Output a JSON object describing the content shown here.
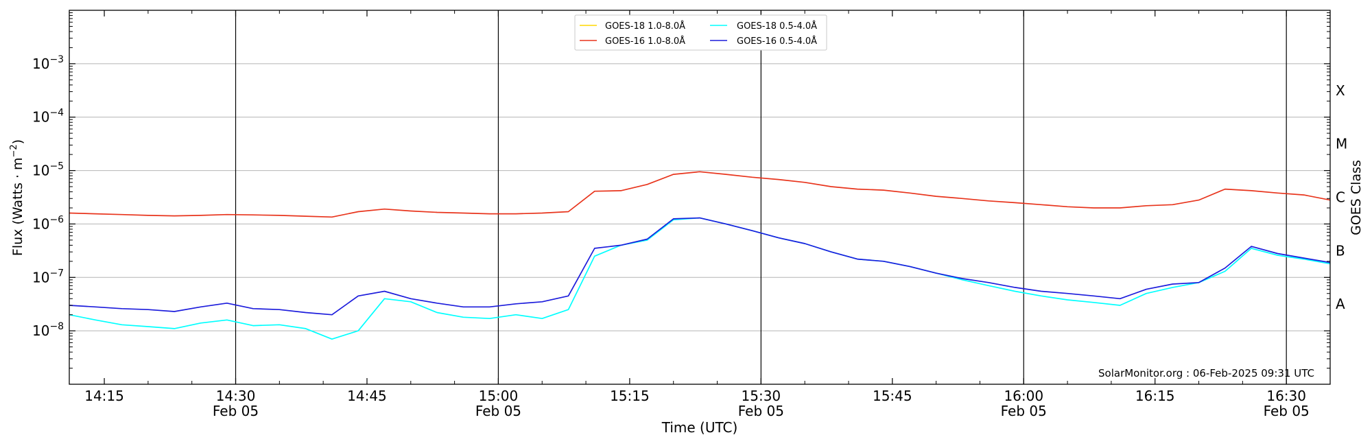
{
  "chart_data": {
    "type": "line",
    "title": "",
    "xlabel": "Time (UTC)",
    "ylabel": "Flux (Watts · m",
    "ylabel_superscript": "−2",
    "ylabel_close": ")",
    "y2label": "GOES Class",
    "yscale": "log",
    "ylim": [
      1e-09,
      0.01
    ],
    "xlim": [
      "2025-02-05 14:11",
      "2025-02-05 16:35"
    ],
    "grid": true,
    "legend_position": "top-center",
    "y_ticks": [
      {
        "base": "10",
        "exp": "−3",
        "value": 0.001
      },
      {
        "base": "10",
        "exp": "−4",
        "value": 0.0001
      },
      {
        "base": "10",
        "exp": "−5",
        "value": 1e-05
      },
      {
        "base": "10",
        "exp": "−6",
        "value": 1e-06
      },
      {
        "base": "10",
        "exp": "−7",
        "value": 1e-07
      },
      {
        "base": "10",
        "exp": "−8",
        "value": 1e-08
      }
    ],
    "x_ticks": [
      {
        "time": "14:15",
        "date": ""
      },
      {
        "time": "14:30",
        "date": "Feb 05"
      },
      {
        "time": "14:45",
        "date": ""
      },
      {
        "time": "15:00",
        "date": "Feb 05"
      },
      {
        "time": "15:15",
        "date": ""
      },
      {
        "time": "15:30",
        "date": "Feb 05"
      },
      {
        "time": "15:45",
        "date": ""
      },
      {
        "time": "16:00",
        "date": "Feb 05"
      },
      {
        "time": "16:15",
        "date": ""
      },
      {
        "time": "16:30",
        "date": "Feb 05"
      }
    ],
    "vertical_lines": [
      "14:30",
      "15:00",
      "15:30",
      "16:00",
      "16:30"
    ],
    "class_labels": [
      {
        "label": "X",
        "flux": 0.0001
      },
      {
        "label": "M",
        "flux": 1e-05
      },
      {
        "label": "C",
        "flux": 1e-06
      },
      {
        "label": "B",
        "flux": 1e-07
      },
      {
        "label": "A",
        "flux": 1e-08
      }
    ],
    "x_times": [
      "14:11",
      "14:14",
      "14:17",
      "14:20",
      "14:23",
      "14:26",
      "14:29",
      "14:32",
      "14:35",
      "14:38",
      "14:41",
      "14:44",
      "14:47",
      "14:50",
      "14:53",
      "14:56",
      "14:59",
      "15:02",
      "15:05",
      "15:08",
      "15:11",
      "15:14",
      "15:17",
      "15:20",
      "15:23",
      "15:26",
      "15:29",
      "15:32",
      "15:35",
      "15:38",
      "15:41",
      "15:44",
      "15:47",
      "15:50",
      "15:53",
      "15:56",
      "15:59",
      "16:02",
      "16:05",
      "16:08",
      "16:11",
      "16:14",
      "16:17",
      "16:20",
      "16:23",
      "16:26",
      "16:29",
      "16:32",
      "16:35"
    ],
    "series": [
      {
        "name": "GOES-18 1.0-8.0Å",
        "color": "#ffd700",
        "values": []
      },
      {
        "name": "GOES-16 1.0-8.0Å",
        "color": "#e8341c",
        "values": [
          1.6e-06,
          1.55e-06,
          1.5e-06,
          1.45e-06,
          1.42e-06,
          1.45e-06,
          1.5e-06,
          1.48e-06,
          1.45e-06,
          1.4e-06,
          1.35e-06,
          1.7e-06,
          1.9e-06,
          1.75e-06,
          1.65e-06,
          1.6e-06,
          1.55e-06,
          1.55e-06,
          1.6e-06,
          1.7e-06,
          4.1e-06,
          4.2e-06,
          5.5e-06,
          8.5e-06,
          9.5e-06,
          8.5e-06,
          7.5e-06,
          6.8e-06,
          6e-06,
          5e-06,
          4.5e-06,
          4.3e-06,
          3.8e-06,
          3.3e-06,
          3e-06,
          2.7e-06,
          2.5e-06,
          2.3e-06,
          2.1e-06,
          2e-06,
          2e-06,
          2.2e-06,
          2.3e-06,
          2.8e-06,
          4.5e-06,
          4.2e-06,
          3.8e-06,
          3.5e-06,
          2.8e-06
        ]
      },
      {
        "name": "GOES-18 0.5-4.0Å",
        "color": "#00ffff",
        "values": [
          2e-08,
          1.6e-08,
          1.3e-08,
          1.2e-08,
          1.1e-08,
          1.4e-08,
          1.6e-08,
          1.25e-08,
          1.3e-08,
          1.1e-08,
          7e-09,
          1e-08,
          4e-08,
          3.5e-08,
          2.2e-08,
          1.8e-08,
          1.7e-08,
          2e-08,
          1.7e-08,
          2.5e-08,
          2.5e-07,
          4e-07,
          5e-07,
          1.2e-06,
          1.3e-06,
          1e-06,
          7.5e-07,
          5.5e-07,
          4.3e-07,
          3e-07,
          2.2e-07,
          2e-07,
          1.6e-07,
          1.2e-07,
          9e-08,
          7e-08,
          5.5e-08,
          4.5e-08,
          3.8e-08,
          3.4e-08,
          3e-08,
          5e-08,
          6.5e-08,
          8e-08,
          1.3e-07,
          3.5e-07,
          2.6e-07,
          2.2e-07,
          1.8e-07
        ]
      },
      {
        "name": "GOES-16 0.5-4.0Å",
        "color": "#1c1cdc",
        "values": [
          3e-08,
          2.8e-08,
          2.6e-08,
          2.5e-08,
          2.3e-08,
          2.8e-08,
          3.3e-08,
          2.6e-08,
          2.5e-08,
          2.2e-08,
          2e-08,
          4.5e-08,
          5.5e-08,
          4e-08,
          3.3e-08,
          2.8e-08,
          2.8e-08,
          3.2e-08,
          3.5e-08,
          4.5e-08,
          3.5e-07,
          4e-07,
          5.2e-07,
          1.25e-06,
          1.3e-06,
          1e-06,
          7.5e-07,
          5.5e-07,
          4.3e-07,
          3e-07,
          2.2e-07,
          2e-07,
          1.6e-07,
          1.2e-07,
          9.5e-08,
          8e-08,
          6.5e-08,
          5.5e-08,
          5e-08,
          4.5e-08,
          4e-08,
          6e-08,
          7.5e-08,
          8e-08,
          1.5e-07,
          3.8e-07,
          2.8e-07,
          2.3e-07,
          1.9e-07
        ]
      }
    ],
    "annotation": "SolarMonitor.org : 06-Feb-2025 09:31 UTC"
  }
}
